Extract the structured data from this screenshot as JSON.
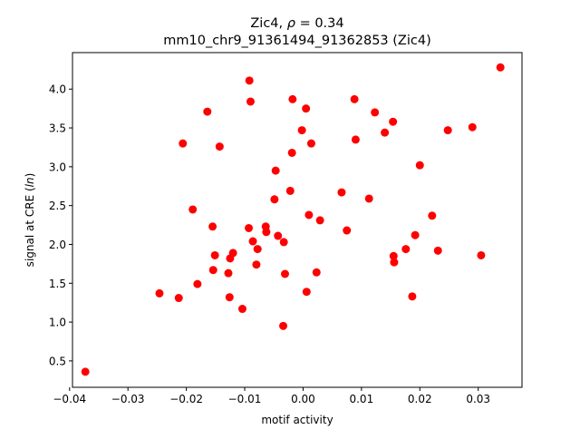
{
  "chart_data": {
    "type": "scatter",
    "title_line1_prefix": "Zic4, ",
    "title_rho_symbol": "ρ",
    "title_rho_value": " = 0.34",
    "title_line2": "mm10_chr9_91361494_91362853 (Zic4)",
    "xlabel": "motif activity",
    "ylabel_prefix": "signal at CRE (",
    "ylabel_italic": "ln",
    "ylabel_suffix": ")",
    "xlim": [
      -0.0395,
      0.0375
    ],
    "ylim": [
      0.16,
      4.47
    ],
    "x_ticks": [
      -0.04,
      -0.03,
      -0.02,
      -0.01,
      0.0,
      0.01,
      0.02,
      0.03
    ],
    "x_tick_labels": [
      "−0.04",
      "−0.03",
      "−0.02",
      "−0.01",
      "0.00",
      "0.01",
      "0.02",
      "0.03"
    ],
    "y_ticks": [
      0.5,
      1.0,
      1.5,
      2.0,
      2.5,
      3.0,
      3.5,
      4.0
    ],
    "y_tick_labels": [
      "0.5",
      "1.0",
      "1.5",
      "2.0",
      "2.5",
      "3.0",
      "3.5",
      "4.0"
    ],
    "grid": false,
    "marker_color": "#ff0000",
    "points": [
      {
        "x": -0.0373,
        "y": 0.36
      },
      {
        "x": -0.0246,
        "y": 1.37
      },
      {
        "x": -0.0213,
        "y": 1.31
      },
      {
        "x": -0.0206,
        "y": 3.3
      },
      {
        "x": -0.0189,
        "y": 2.45
      },
      {
        "x": -0.0181,
        "y": 1.49
      },
      {
        "x": -0.0164,
        "y": 3.71
      },
      {
        "x": -0.0155,
        "y": 2.23
      },
      {
        "x": -0.0154,
        "y": 1.67
      },
      {
        "x": -0.0151,
        "y": 1.86
      },
      {
        "x": -0.0143,
        "y": 3.26
      },
      {
        "x": -0.0128,
        "y": 1.63
      },
      {
        "x": -0.0126,
        "y": 1.32
      },
      {
        "x": -0.0125,
        "y": 1.82
      },
      {
        "x": -0.012,
        "y": 1.89
      },
      {
        "x": -0.0104,
        "y": 1.17
      },
      {
        "x": -0.0093,
        "y": 2.21
      },
      {
        "x": -0.0092,
        "y": 4.11
      },
      {
        "x": -0.009,
        "y": 3.84
      },
      {
        "x": -0.0086,
        "y": 2.04
      },
      {
        "x": -0.008,
        "y": 1.74
      },
      {
        "x": -0.0078,
        "y": 1.94
      },
      {
        "x": -0.0064,
        "y": 2.23
      },
      {
        "x": -0.0063,
        "y": 2.16
      },
      {
        "x": -0.0049,
        "y": 2.58
      },
      {
        "x": -0.0047,
        "y": 2.95
      },
      {
        "x": -0.0043,
        "y": 2.11
      },
      {
        "x": -0.0033,
        "y": 2.03
      },
      {
        "x": -0.0034,
        "y": 0.95
      },
      {
        "x": -0.0031,
        "y": 1.62
      },
      {
        "x": -0.0022,
        "y": 2.69
      },
      {
        "x": -0.0019,
        "y": 3.18
      },
      {
        "x": -0.0018,
        "y": 3.87
      },
      {
        "x": -0.0002,
        "y": 3.47
      },
      {
        "x": 0.0005,
        "y": 3.75
      },
      {
        "x": 0.0006,
        "y": 1.39
      },
      {
        "x": 0.001,
        "y": 2.38
      },
      {
        "x": 0.0014,
        "y": 3.3
      },
      {
        "x": 0.0023,
        "y": 1.64
      },
      {
        "x": 0.0029,
        "y": 2.31
      },
      {
        "x": 0.0066,
        "y": 2.67
      },
      {
        "x": 0.0075,
        "y": 2.18
      },
      {
        "x": 0.0088,
        "y": 3.87
      },
      {
        "x": 0.009,
        "y": 3.35
      },
      {
        "x": 0.0113,
        "y": 2.59
      },
      {
        "x": 0.0123,
        "y": 3.7
      },
      {
        "x": 0.014,
        "y": 3.44
      },
      {
        "x": 0.0154,
        "y": 3.58
      },
      {
        "x": 0.0155,
        "y": 1.85
      },
      {
        "x": 0.0156,
        "y": 1.77
      },
      {
        "x": 0.0176,
        "y": 1.94
      },
      {
        "x": 0.0187,
        "y": 1.33
      },
      {
        "x": 0.0192,
        "y": 2.12
      },
      {
        "x": 0.02,
        "y": 3.02
      },
      {
        "x": 0.0221,
        "y": 2.37
      },
      {
        "x": 0.0231,
        "y": 1.92
      },
      {
        "x": 0.0248,
        "y": 3.47
      },
      {
        "x": 0.029,
        "y": 3.51
      },
      {
        "x": 0.0305,
        "y": 1.86
      },
      {
        "x": 0.0338,
        "y": 4.28
      }
    ]
  }
}
